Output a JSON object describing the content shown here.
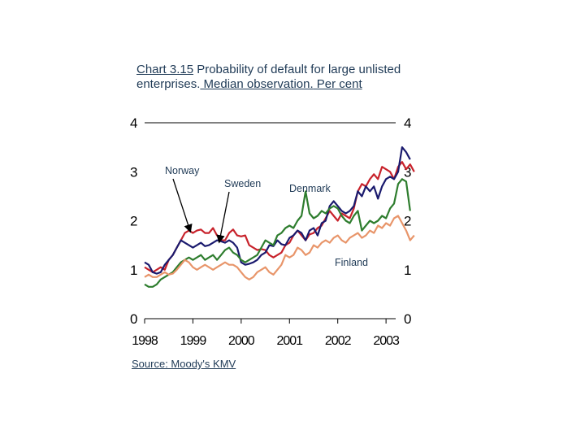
{
  "title": {
    "part1": "Chart 3.15",
    "part2": " Probability of default for large unlisted enterprises.",
    "part3": " Median observation.",
    "part4": " Per cent"
  },
  "source": "Source: Moody's KMV",
  "colors": {
    "Norway": "#c8232c",
    "Sweden": "#1a1a6e",
    "Denmark": "#2e7d2e",
    "Finland": "#e8956a"
  },
  "chart_data": {
    "type": "line",
    "x_start": 1998.0,
    "x_step": 0.08333,
    "xlim": [
      1998,
      2003.2
    ],
    "ylim": [
      0,
      4
    ],
    "x_ticks": [
      "1998",
      "1999",
      "2000",
      "2001",
      "2002",
      "2003"
    ],
    "y_ticks_left": [
      "0",
      "1",
      "2",
      "3",
      "4"
    ],
    "y_ticks_right": [
      "0",
      "1",
      "2",
      "3",
      "4"
    ],
    "annotations": [
      {
        "label": "Norway"
      },
      {
        "label": "Sweden"
      },
      {
        "label": "Denmark"
      },
      {
        "label": "Finland"
      }
    ],
    "series": [
      {
        "name": "Norway",
        "values": [
          1.05,
          1.0,
          0.95,
          1.0,
          1.05,
          1.0,
          1.2,
          1.3,
          1.45,
          1.6,
          1.75,
          1.8,
          1.75,
          1.8,
          1.82,
          1.75,
          1.75,
          1.85,
          1.7,
          1.6,
          1.6,
          1.75,
          1.82,
          1.7,
          1.68,
          1.7,
          1.5,
          1.45,
          1.4,
          1.42,
          1.4,
          1.3,
          1.25,
          1.3,
          1.35,
          1.5,
          1.55,
          1.7,
          1.8,
          1.7,
          1.6,
          1.72,
          1.75,
          1.85,
          1.9,
          2.05,
          2.2,
          2.1,
          2.0,
          2.15,
          2.1,
          2.05,
          2.25,
          2.6,
          2.75,
          2.7,
          2.85,
          2.95,
          2.85,
          3.1,
          3.05,
          3.0,
          2.85,
          3.1,
          3.2,
          3.05,
          3.15,
          3.0
        ]
      },
      {
        "name": "Sweden",
        "values": [
          1.15,
          1.1,
          0.95,
          0.92,
          0.95,
          1.1,
          1.2,
          1.3,
          1.45,
          1.6,
          1.55,
          1.5,
          1.45,
          1.5,
          1.55,
          1.48,
          1.5,
          1.55,
          1.6,
          1.58,
          1.55,
          1.6,
          1.55,
          1.45,
          1.15,
          1.1,
          1.12,
          1.15,
          1.2,
          1.3,
          1.35,
          1.5,
          1.48,
          1.6,
          1.52,
          1.5,
          1.65,
          1.7,
          1.8,
          1.75,
          1.6,
          1.8,
          1.85,
          1.7,
          1.95,
          2.0,
          2.3,
          2.4,
          2.3,
          2.2,
          2.15,
          2.2,
          2.3,
          2.6,
          2.5,
          2.7,
          2.6,
          2.7,
          2.45,
          2.7,
          2.85,
          2.9,
          2.85,
          3.0,
          3.5,
          3.4,
          3.25
        ]
      },
      {
        "name": "Denmark",
        "values": [
          0.7,
          0.65,
          0.65,
          0.7,
          0.8,
          0.85,
          0.9,
          0.95,
          1.05,
          1.15,
          1.2,
          1.25,
          1.2,
          1.25,
          1.3,
          1.2,
          1.25,
          1.3,
          1.2,
          1.3,
          1.4,
          1.45,
          1.35,
          1.3,
          1.2,
          1.15,
          1.2,
          1.25,
          1.3,
          1.45,
          1.6,
          1.55,
          1.5,
          1.7,
          1.75,
          1.85,
          1.9,
          1.85,
          2.0,
          2.1,
          2.6,
          2.15,
          2.05,
          2.1,
          2.2,
          2.15,
          2.25,
          2.3,
          2.25,
          2.1,
          2.0,
          1.95,
          2.1,
          2.2,
          1.8,
          1.9,
          2.0,
          1.95,
          2.0,
          2.1,
          2.05,
          2.25,
          2.35,
          2.75,
          2.85,
          2.8,
          2.2
        ]
      },
      {
        "name": "Finland",
        "values": [
          0.85,
          0.9,
          0.85,
          0.85,
          0.9,
          0.95,
          0.9,
          0.92,
          1.0,
          1.1,
          1.2,
          1.15,
          1.05,
          1.0,
          1.05,
          1.1,
          1.05,
          1.0,
          1.05,
          1.1,
          1.15,
          1.1,
          1.1,
          1.05,
          0.95,
          0.85,
          0.8,
          0.85,
          0.95,
          1.0,
          1.05,
          0.95,
          0.9,
          1.0,
          1.1,
          1.3,
          1.25,
          1.3,
          1.45,
          1.4,
          1.3,
          1.35,
          1.5,
          1.45,
          1.55,
          1.6,
          1.55,
          1.65,
          1.7,
          1.6,
          1.55,
          1.65,
          1.7,
          1.75,
          1.65,
          1.7,
          1.8,
          1.75,
          1.9,
          1.85,
          1.95,
          1.9,
          2.05,
          2.1,
          1.95,
          1.8,
          1.6,
          1.7
        ]
      }
    ]
  }
}
